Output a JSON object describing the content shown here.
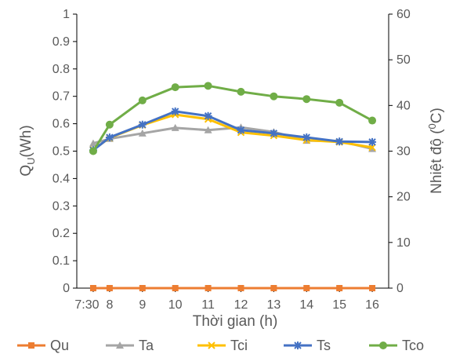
{
  "chart_data": {
    "type": "line",
    "xlabel": "Thời gian (h)",
    "ylabel_left": "Q",
    "ylabel_left_subscript": "U",
    "ylabel_left_unit": "(Wh)",
    "ylabel_right_prefix": "Nhiệt độ (",
    "ylabel_right_superscript": "0",
    "ylabel_right_suffix": "C)",
    "categories": [
      "7:30",
      "8",
      "9",
      "10",
      "11",
      "12",
      "13",
      "14",
      "15",
      "16"
    ],
    "x": [
      7.5,
      8,
      9,
      10,
      11,
      12,
      13,
      14,
      15,
      16
    ],
    "xlim": [
      7,
      16.5
    ],
    "ylim_left": [
      0,
      1
    ],
    "yticks_left": [
      "0",
      "0.1",
      "0.2",
      "0.3",
      "0.4",
      "0.5",
      "0.6",
      "0.7",
      "0.8",
      "0.9",
      "1"
    ],
    "ylim_right": [
      0,
      60
    ],
    "yticks_right": [
      "0",
      "10",
      "20",
      "30",
      "40",
      "50",
      "60"
    ],
    "grid": false,
    "legend_position": "bottom",
    "series": [
      {
        "name": "Qu",
        "axis": "left",
        "color": "#ed7d31",
        "marker": "square",
        "values": [
          0,
          0,
          0,
          0,
          0,
          0,
          0,
          0,
          0,
          0
        ]
      },
      {
        "name": "Ta",
        "axis": "right",
        "color": "#a5a5a5",
        "marker": "triangle",
        "values": [
          31.7,
          32.7,
          33.9,
          35.1,
          34.6,
          35.2,
          34.2,
          32.3,
          32.2,
          30.5
        ]
      },
      {
        "name": "Tci",
        "axis": "right",
        "color": "#ffc000",
        "marker": "x",
        "values": [
          30.3,
          32.9,
          35.7,
          38.0,
          37.0,
          34.1,
          33.4,
          32.4,
          32.0,
          30.8
        ]
      },
      {
        "name": "Ts",
        "axis": "right",
        "color": "#4472c4",
        "marker": "star",
        "values": [
          30.2,
          33.0,
          35.8,
          38.7,
          37.7,
          34.6,
          33.9,
          33.0,
          32.1,
          32.0
        ]
      },
      {
        "name": "Tco",
        "axis": "right",
        "color": "#70ad47",
        "marker": "circle",
        "values": [
          30.0,
          35.8,
          41.1,
          44.0,
          44.3,
          43.0,
          42.0,
          41.4,
          40.6,
          36.7
        ]
      }
    ]
  }
}
